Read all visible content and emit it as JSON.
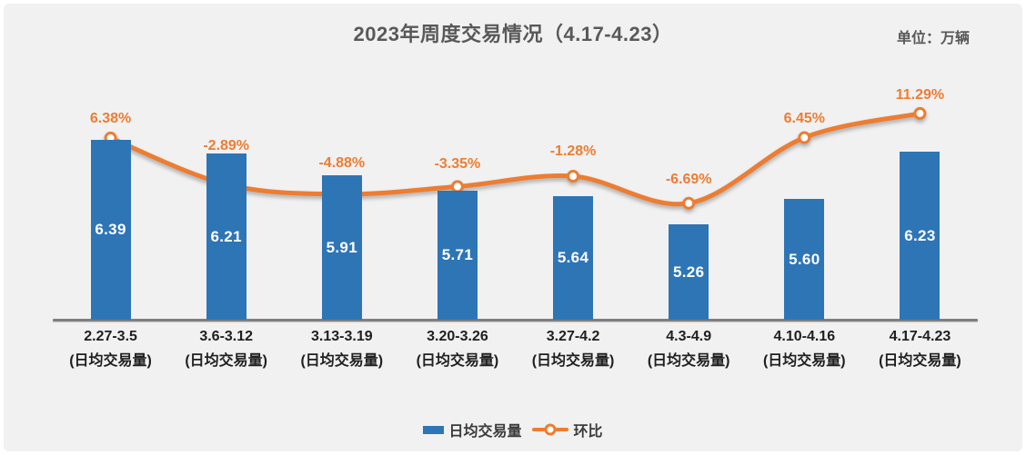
{
  "chart_data": {
    "type": "bar",
    "combo_with_line": true,
    "title": "2023年周度交易情况（4.17-4.23）",
    "unit_label": "单位：万辆",
    "categories": [
      "2.27-3.5",
      "3.6-3.12",
      "3.13-3.19",
      "3.20-3.26",
      "3.27-4.2",
      "4.3-4.9",
      "4.10-4.16",
      "4.17-4.23"
    ],
    "category_sublabel": "(日均交易量)",
    "series": [
      {
        "name": "日均交易量",
        "kind": "bar",
        "axis": "primary",
        "values": [
          6.39,
          6.21,
          5.91,
          5.71,
          5.64,
          5.26,
          5.6,
          6.23
        ],
        "labels": [
          "6.39",
          "6.21",
          "5.91",
          "5.71",
          "5.64",
          "5.26",
          "5.60",
          "6.23"
        ],
        "color": "#2E75B6"
      },
      {
        "name": "环比",
        "kind": "line",
        "axis": "secondary",
        "values": [
          6.38,
          -2.89,
          -4.88,
          -3.35,
          -1.28,
          -6.69,
          6.45,
          11.29
        ],
        "labels": [
          "6.38%",
          "-2.89%",
          "-4.88%",
          "-3.35%",
          "-1.28%",
          "-6.69%",
          "6.45%",
          "11.29%"
        ],
        "color": "#ED7D31",
        "marker": "circle-white-fill-orange-ring"
      }
    ],
    "y_axis": {
      "visible": false,
      "approx_range": [
        4.0,
        6.7
      ]
    },
    "secondary_y_axis": {
      "visible": false,
      "unit": "%"
    },
    "grid": false,
    "legend_position": "bottom",
    "background_color": "#F1F1F2",
    "axis_line_color": "#7F7F7F",
    "title_color": "#595959"
  }
}
